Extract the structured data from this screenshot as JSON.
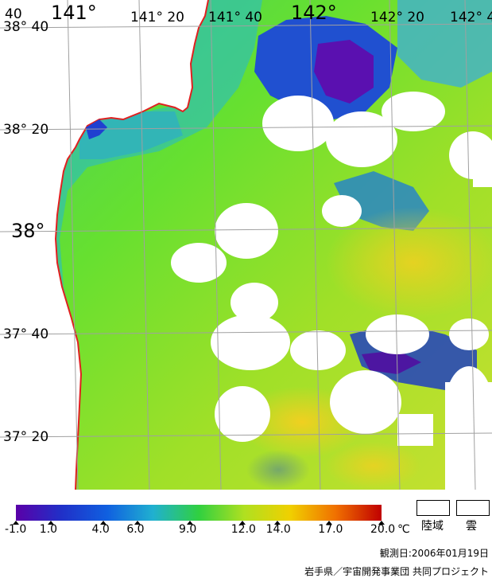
{
  "coordinates": {
    "lon": [
      "40",
      "141°",
      "141° 20",
      "141° 40",
      "142°",
      "142° 20",
      "142° 4"
    ],
    "lat": [
      "38° 40",
      "38° 20",
      "38°",
      "37° 40",
      "37° 20"
    ]
  },
  "scale": {
    "unit": "℃",
    "ticks": [
      "-1.0",
      "1.0",
      "4.0",
      "6.0",
      "9.0",
      "12.0",
      "14.0",
      "17.0",
      "20.0"
    ],
    "colors": [
      "#5a00a8",
      "#2030c8",
      "#1060e0",
      "#20b0d0",
      "#30d040",
      "#b0e020",
      "#f0d000",
      "#f07000",
      "#c00000"
    ]
  },
  "legend": {
    "land": "陸域",
    "cloud": "雲"
  },
  "footer": {
    "observation_date": "観測日:2006年01月19日",
    "credit": "岩手県／宇宙開発事業団 共同プロジェクト"
  },
  "colors": {
    "coast": "#e02020",
    "grid": "#a0a0a0",
    "land": "#ffffff",
    "cloud": "#ffffff"
  }
}
